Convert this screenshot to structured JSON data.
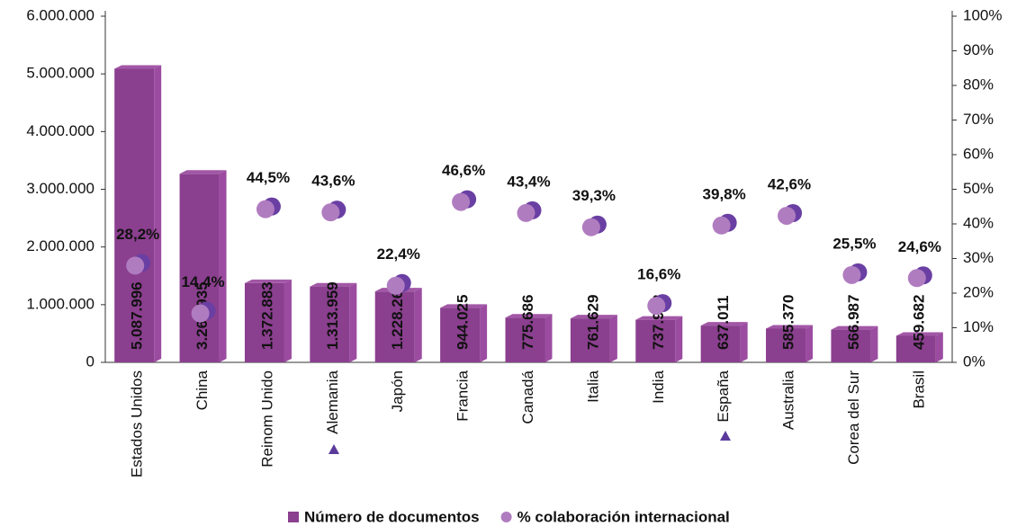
{
  "chart_data": {
    "type": "bar",
    "categories": [
      "Estados Unidos",
      "China",
      "Reinom Unido",
      "Alemania",
      "Japón",
      "Francia",
      "Canadá",
      "Italia",
      "India",
      "España",
      "Australia",
      "Corea del Sur",
      "Brasil"
    ],
    "series": [
      {
        "name": "Número de documentos",
        "type": "bar",
        "color": "#8b3f8f",
        "values": [
          5087996,
          3267935,
          1372883,
          1313959,
          1228261,
          944025,
          775686,
          761629,
          737962,
          637011,
          585370,
          566987,
          459682
        ],
        "value_labels": [
          "5.087.996",
          "3.267.935",
          "1.372.883",
          "1.313.959",
          "1.228.261",
          "944.025",
          "775.686",
          "761.629",
          "737.962",
          "637.011",
          "585.370",
          "566.987",
          "459.682"
        ]
      },
      {
        "name": "% colaboración internacional",
        "type": "scatter",
        "axis": "y2",
        "color": "#b07cc0",
        "values": [
          28.2,
          14.4,
          44.5,
          43.6,
          22.4,
          46.6,
          43.4,
          39.3,
          16.6,
          39.8,
          42.6,
          25.5,
          24.6
        ],
        "value_labels": [
          "28,2%",
          "14,4%",
          "44,5%",
          "43,6%",
          "22,4%",
          "46,6%",
          "43,4%",
          "39,3%",
          "16,6%",
          "39,8%",
          "42,6%",
          "25,5%",
          "24,6%"
        ]
      }
    ],
    "ylim": [
      0,
      6000000
    ],
    "yticks": [
      0,
      {
        "value": 1000000,
        "label": "1.000.000"
      },
      {
        "value": 2000000,
        "label": "2.000.000"
      },
      {
        "value": 3000000,
        "label": "3.000.000"
      },
      {
        "value": 4000000,
        "label": "4.000.000"
      },
      {
        "value": 5000000,
        "label": "5.000.000"
      },
      {
        "value": 6000000,
        "label": "6.000.000"
      }
    ],
    "y2lim": [
      0,
      100
    ],
    "y2ticks": [
      {
        "value": 0,
        "label": "0%"
      },
      {
        "value": 10,
        "label": "10%"
      },
      {
        "value": 20,
        "label": "20%"
      },
      {
        "value": 30,
        "label": "30%"
      },
      {
        "value": 40,
        "label": "40%"
      },
      {
        "value": 50,
        "label": "50%"
      },
      {
        "value": 60,
        "label": "60%"
      },
      {
        "value": 70,
        "label": "70%"
      },
      {
        "value": 80,
        "label": "80%"
      },
      {
        "value": 90,
        "label": "90%"
      },
      {
        "value": 100,
        "label": "100%"
      }
    ],
    "legend": "bottom"
  }
}
